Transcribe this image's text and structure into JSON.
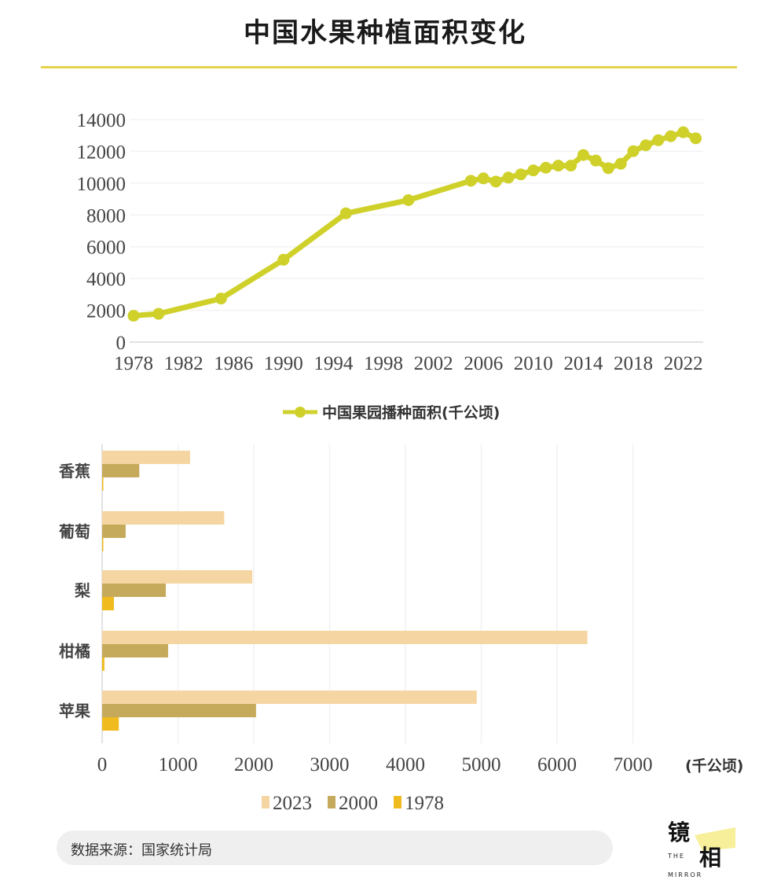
{
  "title": "中国水果种植面积变化",
  "colors": {
    "line": "#cfd12a",
    "title_rule": "#e6d24a",
    "bar_2023": "#f5d6a2",
    "bar_2000": "#c6aa5c",
    "bar_1978": "#f0bb1e"
  },
  "chart_data": [
    {
      "type": "line",
      "title": "",
      "xlabel": "",
      "ylabel": "",
      "x_ticks": [
        "1978",
        "1982",
        "1986",
        "1990",
        "1994",
        "1998",
        "2002",
        "2006",
        "2010",
        "2014",
        "2018",
        "2022"
      ],
      "y_ticks": [
        "0",
        "2000",
        "4000",
        "6000",
        "8000",
        "10000",
        "12000",
        "14000"
      ],
      "ylim": [
        0,
        14000
      ],
      "grid": true,
      "legend": "bottom",
      "series": [
        {
          "name": "中国果园播种面积(千公顷)",
          "x": [
            1978,
            1980,
            1985,
            1990,
            1995,
            2000,
            2005,
            2006,
            2007,
            2008,
            2009,
            2010,
            2011,
            2012,
            2013,
            2014,
            2015,
            2016,
            2017,
            2018,
            2019,
            2020,
            2021,
            2022,
            2023
          ],
          "y": [
            1660,
            1780,
            2740,
            5180,
            8100,
            8930,
            10150,
            10300,
            10100,
            10350,
            10550,
            10800,
            10970,
            11100,
            11100,
            11770,
            11420,
            10940,
            11220,
            12010,
            12380,
            12700,
            12950,
            13200,
            12820
          ]
        }
      ]
    },
    {
      "type": "bar",
      "orientation": "horizontal",
      "title": "",
      "xlabel": "(千公顷)",
      "categories": [
        "香蕉",
        "葡萄",
        "梨",
        "柑橘",
        "苹果"
      ],
      "x_ticks": [
        "0",
        "1000",
        "2000",
        "3000",
        "4000",
        "5000",
        "6000",
        "7000"
      ],
      "xlim": [
        0,
        8000
      ],
      "grid": true,
      "legend": "bottom",
      "series": [
        {
          "name": "2023",
          "values": [
            1160,
            1610,
            1980,
            6400,
            4940
          ]
        },
        {
          "name": "2000",
          "values": [
            490,
            310,
            840,
            870,
            2030
          ]
        },
        {
          "name": "1978",
          "values": [
            5,
            3,
            155,
            30,
            220
          ]
        }
      ]
    }
  ],
  "source": "数据来源：国家统计局",
  "logo": {
    "main": "镜相",
    "sub1": "THE",
    "sub2": "MIRROR"
  }
}
